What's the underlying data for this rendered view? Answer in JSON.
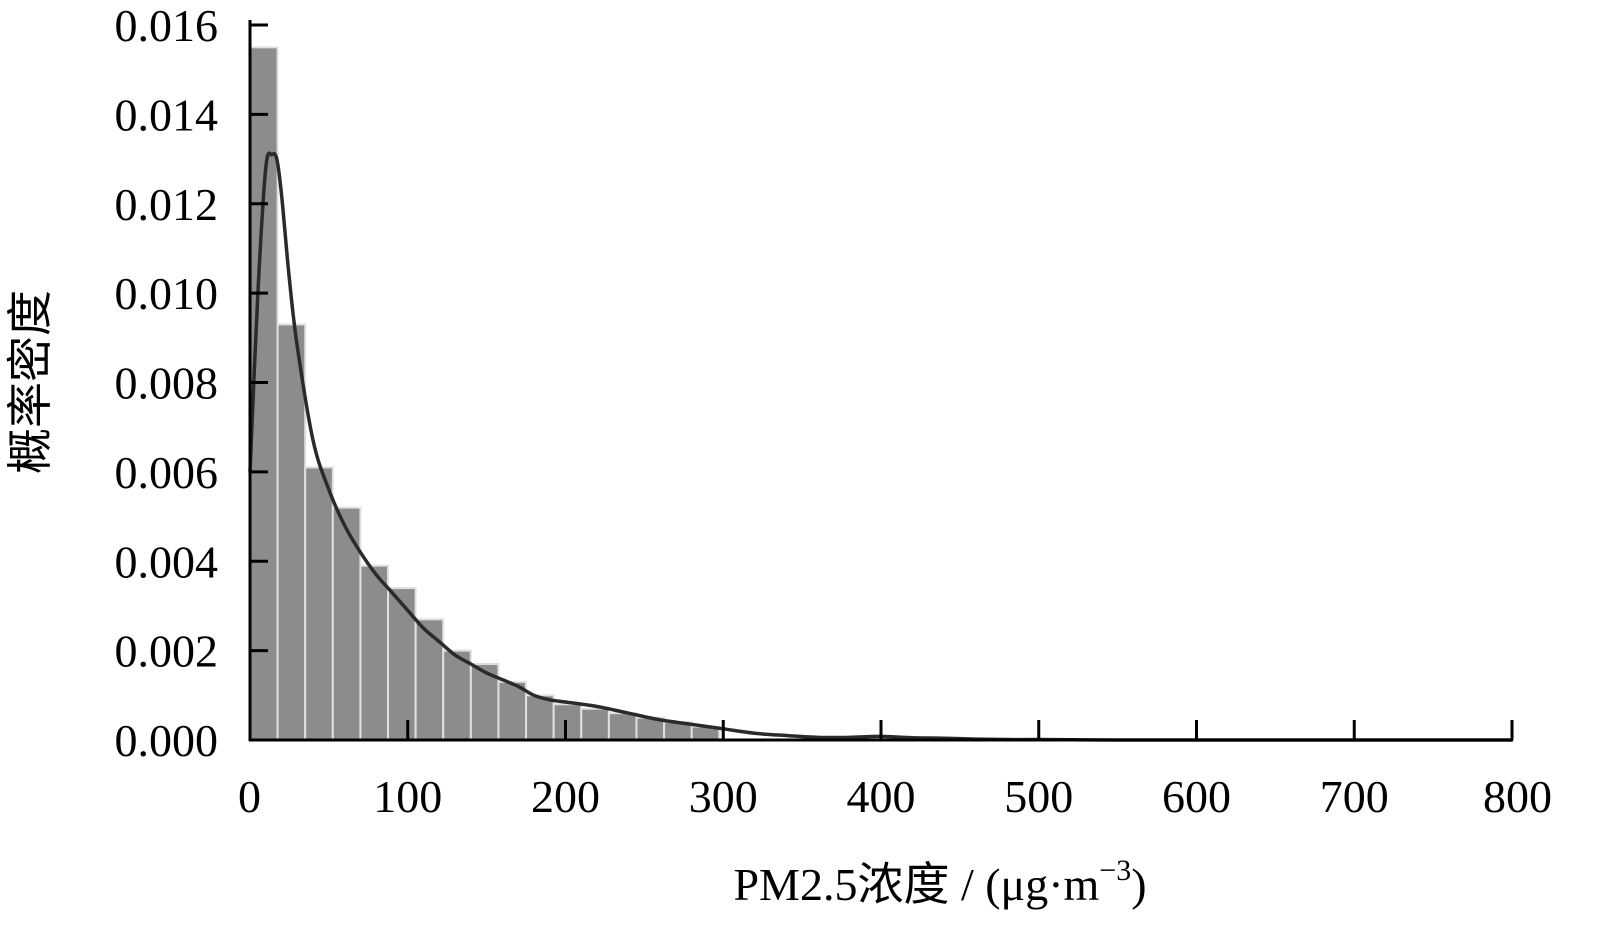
{
  "chart_data": {
    "type": "bar",
    "title": "",
    "xlabel_parts": {
      "main": "PM2.5浓度 / (μg·m",
      "superscript": "−3",
      "close": ")"
    },
    "ylabel": "概率密度",
    "xlim": [
      0,
      800
    ],
    "ylim": [
      0,
      0.016
    ],
    "xticks": [
      0,
      100,
      200,
      300,
      400,
      500,
      600,
      700,
      800
    ],
    "xtick_labels": [
      "0",
      "100",
      "200",
      "300",
      "400",
      "500",
      "600",
      "700",
      "800"
    ],
    "yticks": [
      0,
      0.002,
      0.004,
      0.006,
      0.008,
      0.01,
      0.012,
      0.014,
      0.016
    ],
    "ytick_labels": [
      "0.000",
      "0.002",
      "0.004",
      "0.006",
      "0.008",
      "0.010",
      "0.012",
      "0.014",
      "0.016"
    ],
    "grid": false,
    "histogram": {
      "bin_width": 17.5,
      "bins": [
        {
          "x0": 0,
          "value": 0.0155
        },
        {
          "x0": 17.5,
          "value": 0.0093
        },
        {
          "x0": 35,
          "value": 0.0061
        },
        {
          "x0": 52.5,
          "value": 0.0052
        },
        {
          "x0": 70,
          "value": 0.0039
        },
        {
          "x0": 87.5,
          "value": 0.0034
        },
        {
          "x0": 105,
          "value": 0.0027
        },
        {
          "x0": 122.5,
          "value": 0.002
        },
        {
          "x0": 140,
          "value": 0.0017
        },
        {
          "x0": 157.5,
          "value": 0.0013
        },
        {
          "x0": 175,
          "value": 0.001
        },
        {
          "x0": 192.5,
          "value": 0.0008
        },
        {
          "x0": 210,
          "value": 0.0007
        },
        {
          "x0": 227.5,
          "value": 0.0006
        },
        {
          "x0": 245,
          "value": 0.0005
        },
        {
          "x0": 262.5,
          "value": 0.0004
        },
        {
          "x0": 280,
          "value": 0.0003
        }
      ]
    },
    "density_curve": {
      "x": [
        0,
        5,
        10,
        14,
        17,
        20,
        25,
        30,
        40,
        50,
        60,
        70,
        80,
        90,
        100,
        110,
        120,
        130,
        140,
        150,
        160,
        170,
        180,
        190,
        200,
        220,
        240,
        260,
        280,
        300,
        320,
        340,
        360,
        380,
        400,
        420,
        440,
        460,
        480,
        500,
        550,
        600,
        650,
        700,
        750,
        800
      ],
      "y": [
        0.006,
        0.01,
        0.0128,
        0.0131,
        0.013,
        0.0122,
        0.0103,
        0.0088,
        0.0067,
        0.0056,
        0.0048,
        0.0042,
        0.0037,
        0.0033,
        0.0029,
        0.0025,
        0.0022,
        0.0019,
        0.0017,
        0.0015,
        0.00135,
        0.0012,
        0.001,
        0.0009,
        0.00085,
        0.00075,
        0.0006,
        0.00045,
        0.00035,
        0.00025,
        0.00015,
        0.0001,
        6e-05,
        6e-05,
        8e-05,
        5e-05,
        4e-05,
        2e-05,
        1e-05,
        1e-05,
        0.0,
        0.0,
        0.0,
        0.0,
        0.0,
        0.0
      ]
    },
    "colors": {
      "bar_fill": "#8c8c8c",
      "bar_edge": "#e0e0e0",
      "curve": "#2a2a2a",
      "axis": "#000000"
    }
  }
}
